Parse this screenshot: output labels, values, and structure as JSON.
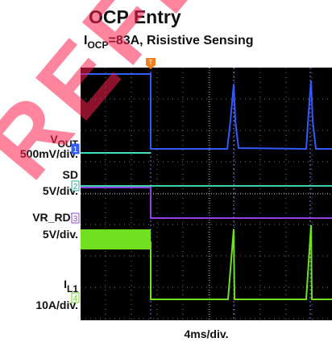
{
  "header": {
    "title": "OCP Entry",
    "subtitle": {
      "symbol": "I",
      "subscript": "OCP",
      "rest": "=83A, Risistive Sensing"
    }
  },
  "channels": [
    {
      "name": "V",
      "subscript": "OUT",
      "scale": "500mV/div.",
      "marker": "1"
    },
    {
      "name": "SD",
      "scale": "5V/div.",
      "marker": "2"
    },
    {
      "name": "VR_RDY",
      "scale": "5V/div.",
      "marker": "3"
    },
    {
      "name": "I",
      "subscript": "L1",
      "scale": "10A/div.",
      "marker": "4"
    }
  ],
  "trigger": "T",
  "timebase": "4ms/div.",
  "watermark": "REFER"
}
